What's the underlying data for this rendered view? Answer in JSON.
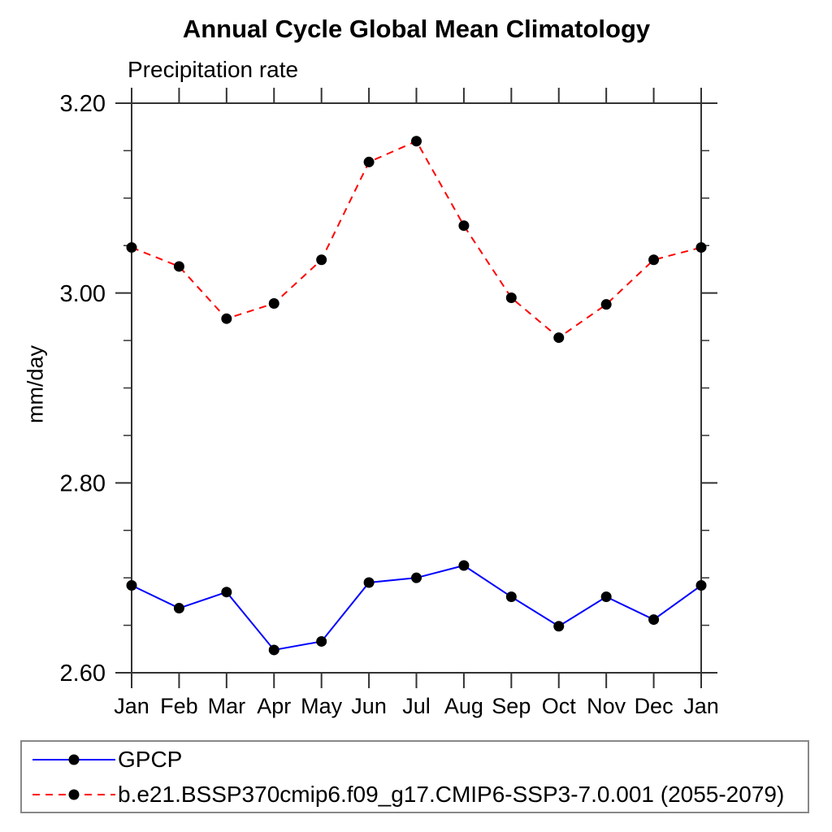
{
  "title": "Annual Cycle Global Mean Climatology",
  "subtitle": "Precipitation rate",
  "ylabel": "mm/day",
  "legend": {
    "position": "bottom",
    "entries": [
      {
        "label": "GPCP",
        "color": "#0000ff",
        "line_style": "solid",
        "marker": "filled-circle",
        "marker_color": "#000000"
      },
      {
        "label": "b.e21.BSSP370cmip6.f09_g17.CMIP6-SSP3-7.0.001 (2055-2079)",
        "color": "#ff0000",
        "line_style": "dashed",
        "marker": "filled-circle",
        "marker_color": "#000000"
      }
    ]
  },
  "colors": {
    "background": "#ffffff",
    "axis": "#333333",
    "gpcp_line": "#0000ff",
    "model_line": "#ff0000",
    "marker": "#000000",
    "legend_border": "#888888"
  },
  "chart_data": {
    "type": "line",
    "title": "Annual Cycle Global Mean Climatology",
    "subtitle": "Precipitation rate",
    "xlabel": "",
    "ylabel": "mm/day",
    "categories": [
      "Jan",
      "Feb",
      "Mar",
      "Apr",
      "May",
      "Jun",
      "Jul",
      "Aug",
      "Sep",
      "Oct",
      "Nov",
      "Dec",
      "Jan"
    ],
    "series": [
      {
        "name": "GPCP",
        "color": "#0000ff",
        "line_style": "solid",
        "marker": "filled-circle",
        "marker_color": "#000000",
        "values": [
          2.692,
          2.668,
          2.685,
          2.624,
          2.633,
          2.695,
          2.7,
          2.713,
          2.68,
          2.649,
          2.68,
          2.656,
          2.692
        ]
      },
      {
        "name": "b.e21.BSSP370cmip6.f09_g17.CMIP6-SSP3-7.0.001 (2055-2079)",
        "color": "#ff0000",
        "line_style": "dashed",
        "marker": "filled-circle",
        "marker_color": "#000000",
        "values": [
          3.048,
          3.028,
          2.973,
          2.989,
          3.035,
          3.138,
          3.16,
          3.071,
          2.995,
          2.953,
          2.988,
          3.035,
          3.048
        ]
      }
    ],
    "ylim": [
      2.6,
      3.2
    ],
    "ytick_labels": [
      "2.60",
      "2.80",
      "3.00",
      "3.20"
    ],
    "ytick_major_values": [
      2.6,
      2.8,
      3.0,
      3.2
    ],
    "ytick_minor_step": 0.05,
    "grid": false,
    "tick_direction": "out",
    "legend_position": "bottom"
  }
}
